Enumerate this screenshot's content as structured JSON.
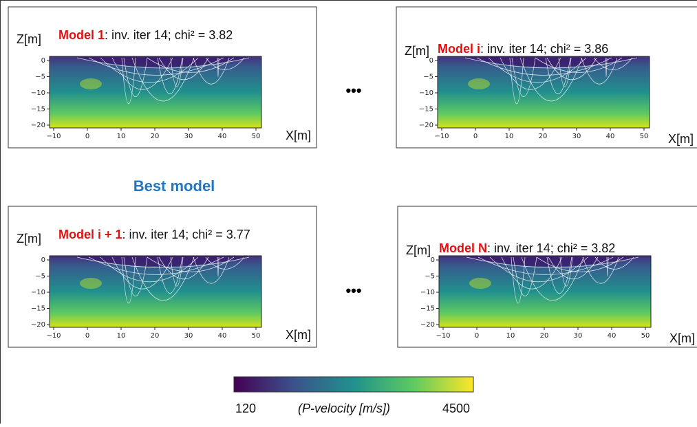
{
  "panels": [
    {
      "z_label": "Z[m]",
      "model": "Model 1",
      "caption": ": inv. iter 14; chi² = 3.82",
      "x_label": "X[m]"
    },
    {
      "z_label": "Z[m]",
      "model": "Model i",
      "caption": ": inv. iter 14; chi² = 3.86",
      "x_label": "X[m]"
    },
    {
      "z_label": "Z[m]",
      "model": "Model i + 1",
      "caption": ": inv. iter 14; chi² = 3.77",
      "x_label": "X[m]"
    },
    {
      "z_label": "Z[m]",
      "model": "Model N",
      "caption": ": inv. iter 14; chi² = 3.82",
      "x_label": "X[m]"
    }
  ],
  "xticks": [
    "−10",
    "0",
    "10",
    "20",
    "30",
    "40",
    "50"
  ],
  "yticks": [
    "0",
    "−5",
    "−10",
    "−15",
    "−20"
  ],
  "ellipses": [
    "•••",
    "•••"
  ],
  "best_label": "Best model",
  "colorbar": {
    "min_label": "120",
    "title": "(P-velocity [m/s])",
    "max_label": "4500"
  }
}
